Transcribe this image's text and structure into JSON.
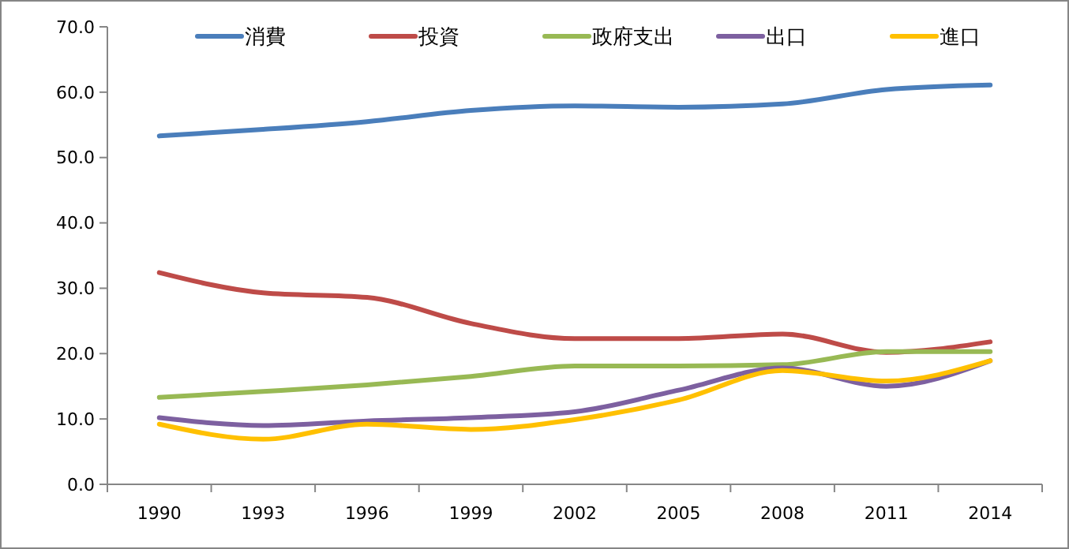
{
  "chart_data": {
    "type": "line",
    "categories": [
      "1990",
      "1993",
      "1996",
      "1999",
      "2002",
      "2005",
      "2008",
      "2011",
      "2014"
    ],
    "series": [
      {
        "name": "消費",
        "color": "#4a7ebb",
        "values": [
          53.3,
          54.3,
          55.5,
          57.2,
          57.9,
          57.7,
          58.2,
          60.4,
          61.1
        ]
      },
      {
        "name": "投資",
        "color": "#be4b48",
        "values": [
          32.4,
          29.3,
          28.6,
          24.6,
          22.3,
          22.3,
          23.0,
          20.2,
          21.8
        ]
      },
      {
        "name": "政府支出",
        "color": "#98b954",
        "values": [
          13.3,
          14.2,
          15.2,
          16.5,
          18.1,
          18.1,
          18.3,
          20.3,
          20.3
        ]
      },
      {
        "name": "出口",
        "color": "#7d60a0",
        "values": [
          10.2,
          9.0,
          9.7,
          10.2,
          11.1,
          14.4,
          17.8,
          15.0,
          18.9
        ]
      },
      {
        "name": "進口",
        "color": "#ffc000",
        "values": [
          9.2,
          6.9,
          9.2,
          8.4,
          9.9,
          12.9,
          17.4,
          15.8,
          18.9
        ]
      }
    ],
    "ylim": [
      0,
      70
    ],
    "yticks": [
      {
        "value": 0,
        "label": "0.0"
      },
      {
        "value": 10,
        "label": "10.0"
      },
      {
        "value": 20,
        "label": "20.0"
      },
      {
        "value": 30,
        "label": "30.0"
      },
      {
        "value": 40,
        "label": "40.0"
      },
      {
        "value": 50,
        "label": "50.0"
      },
      {
        "value": 60,
        "label": "60.0"
      },
      {
        "value": 70,
        "label": "70.0"
      }
    ],
    "legend": "top",
    "marker": "none",
    "line_style": "solid",
    "grid": false
  }
}
